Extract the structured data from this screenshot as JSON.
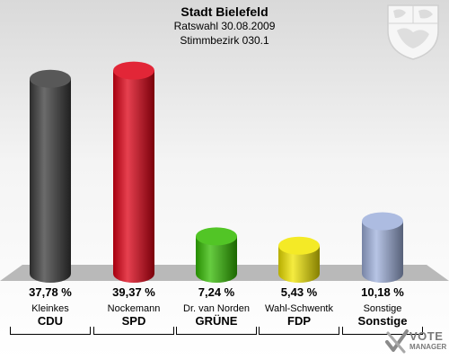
{
  "header": {
    "title": "Stadt Bielefeld",
    "subtitle1": "Ratswahl 30.08.2009",
    "subtitle2": "Stimmbezirk 030.1"
  },
  "chart_data": {
    "type": "bar",
    "title": "Stadt Bielefeld",
    "categories": [
      "CDU",
      "SPD",
      "GRÜNE",
      "FDP",
      "Sonstige"
    ],
    "candidates": [
      "Kleinkes",
      "Nockemann",
      "Dr. van Norden",
      "Wahl-Schwentk",
      "Sonstige"
    ],
    "values": [
      37.78,
      39.37,
      7.24,
      5.43,
      10.18
    ],
    "value_labels": [
      "37,78 %",
      "39,37 %",
      "7,24 %",
      "5,43 %",
      "10,18 %"
    ],
    "colors": [
      "#3a3a3a",
      "#dd0014",
      "#33bb00",
      "#f2e600",
      "#9fb0dc"
    ],
    "ylim": [
      0,
      40
    ],
    "grid": false,
    "legend": "none"
  },
  "logo": {
    "line1": "VOTE",
    "line2": "MANAGER",
    "icon": "vote-manager-check-icon"
  },
  "crest": {
    "icon": "nrw-coat-of-arms-icon"
  }
}
